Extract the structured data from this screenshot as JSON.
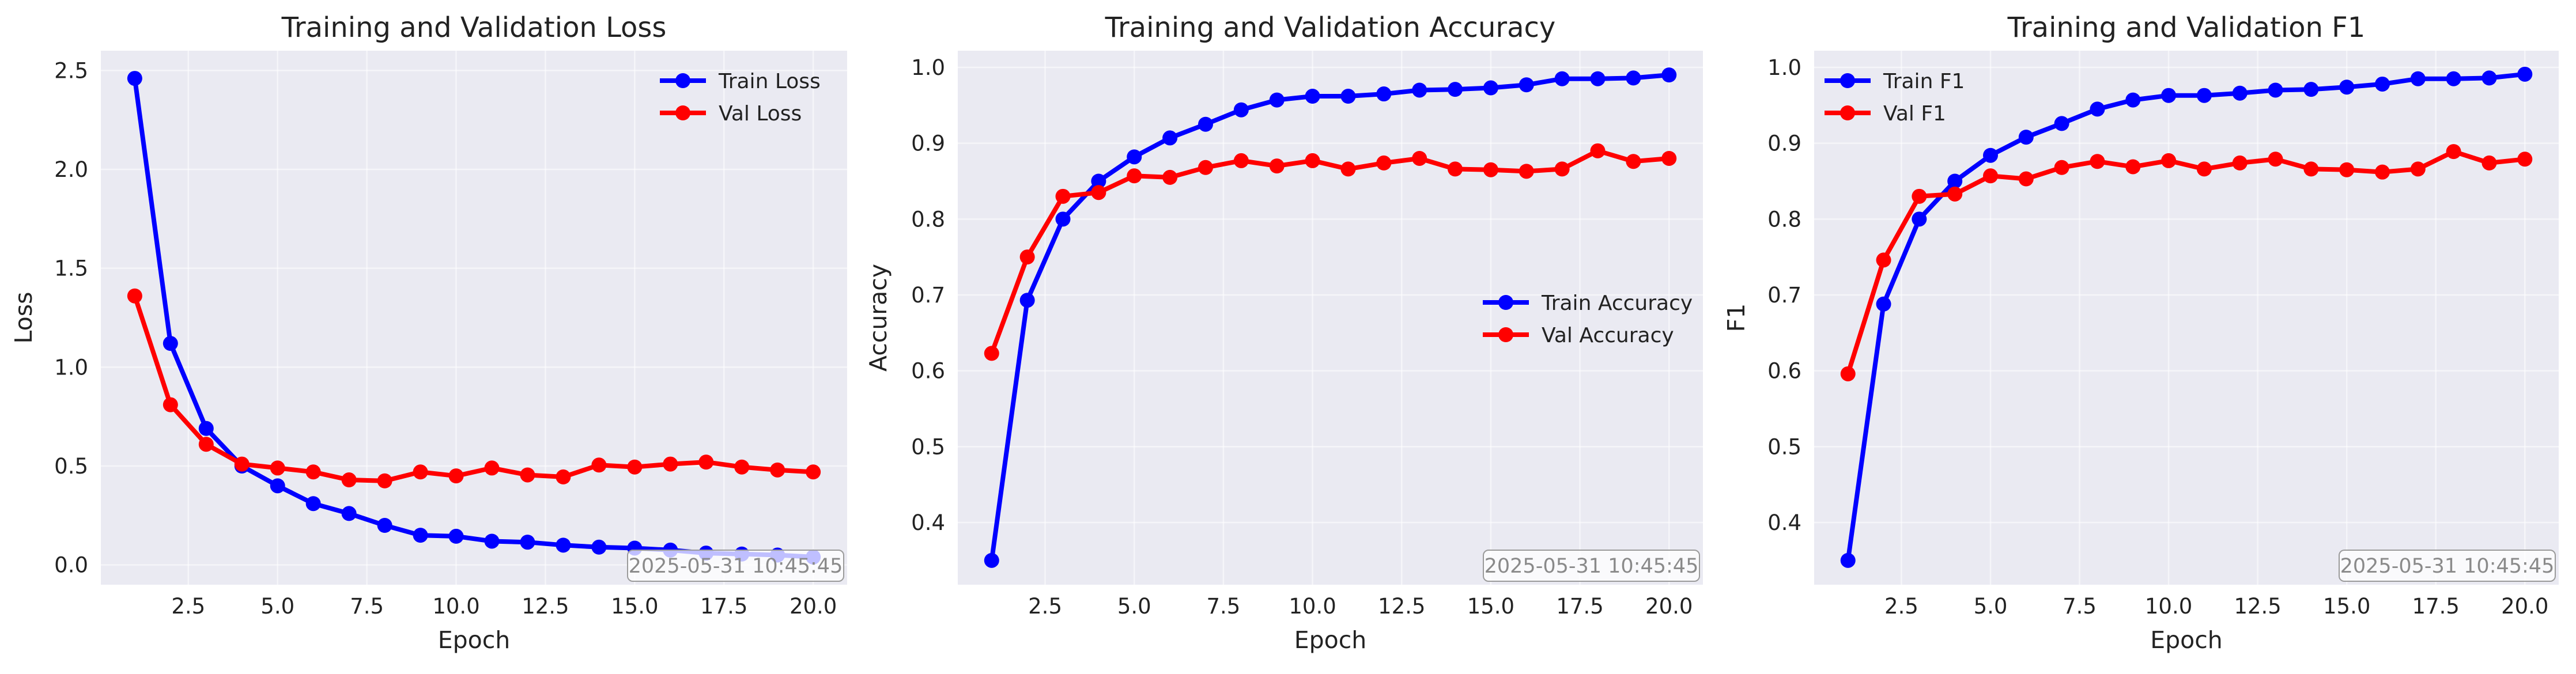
{
  "chart_data": [
    {
      "type": "line",
      "title": "Training and Validation Loss",
      "xlabel": "Epoch",
      "ylabel": "Loss",
      "x": [
        1,
        2,
        3,
        4,
        5,
        6,
        7,
        8,
        9,
        10,
        11,
        12,
        13,
        14,
        15,
        16,
        17,
        18,
        19,
        20
      ],
      "xlim": [
        0.05,
        20.95
      ],
      "ylim": [
        -0.1,
        2.6
      ],
      "xticks": [
        2.5,
        5.0,
        7.5,
        10.0,
        12.5,
        15.0,
        17.5,
        20.0
      ],
      "xtick_labels": [
        "2.5",
        "5.0",
        "7.5",
        "10.0",
        "12.5",
        "15.0",
        "17.5",
        "20.0"
      ],
      "yticks": [
        0.0,
        0.5,
        1.0,
        1.5,
        2.0,
        2.5
      ],
      "ytick_labels": [
        "0.0",
        "0.5",
        "1.0",
        "1.5",
        "2.0",
        "2.5"
      ],
      "series": [
        {
          "name": "Train Loss",
          "color": "#0000ff",
          "values": [
            2.46,
            1.12,
            0.69,
            0.5,
            0.4,
            0.31,
            0.26,
            0.2,
            0.15,
            0.145,
            0.12,
            0.115,
            0.1,
            0.09,
            0.085,
            0.075,
            0.06,
            0.055,
            0.05,
            0.04
          ]
        },
        {
          "name": "Val Loss",
          "color": "#ff0000",
          "values": [
            1.36,
            0.81,
            0.61,
            0.51,
            0.49,
            0.47,
            0.43,
            0.425,
            0.47,
            0.45,
            0.49,
            0.455,
            0.445,
            0.505,
            0.495,
            0.51,
            0.52,
            0.495,
            0.48,
            0.47
          ]
        }
      ],
      "legend": "top-right",
      "grid": true,
      "timestamp": "2025-05-31 10:45:45"
    },
    {
      "type": "line",
      "title": "Training and Validation Accuracy",
      "xlabel": "Epoch",
      "ylabel": "Accuracy",
      "x": [
        1,
        2,
        3,
        4,
        5,
        6,
        7,
        8,
        9,
        10,
        11,
        12,
        13,
        14,
        15,
        16,
        17,
        18,
        19,
        20
      ],
      "xlim": [
        0.05,
        20.95
      ],
      "ylim": [
        0.318,
        1.022
      ],
      "xticks": [
        2.5,
        5.0,
        7.5,
        10.0,
        12.5,
        15.0,
        17.5,
        20.0
      ],
      "xtick_labels": [
        "2.5",
        "5.0",
        "7.5",
        "10.0",
        "12.5",
        "15.0",
        "17.5",
        "20.0"
      ],
      "yticks": [
        0.4,
        0.5,
        0.6,
        0.7,
        0.8,
        0.9,
        1.0
      ],
      "ytick_labels": [
        "0.4",
        "0.5",
        "0.6",
        "0.7",
        "0.8",
        "0.9",
        "1.0"
      ],
      "series": [
        {
          "name": "Train Accuracy",
          "color": "#0000ff",
          "values": [
            0.35,
            0.693,
            0.8,
            0.85,
            0.882,
            0.907,
            0.925,
            0.944,
            0.957,
            0.962,
            0.962,
            0.965,
            0.97,
            0.971,
            0.973,
            0.977,
            0.985,
            0.985,
            0.986,
            0.99
          ]
        },
        {
          "name": "Val Accuracy",
          "color": "#ff0000",
          "values": [
            0.623,
            0.75,
            0.83,
            0.835,
            0.857,
            0.855,
            0.868,
            0.877,
            0.87,
            0.877,
            0.866,
            0.874,
            0.88,
            0.866,
            0.865,
            0.863,
            0.866,
            0.89,
            0.876,
            0.88
          ]
        }
      ],
      "legend": "center-right",
      "grid": true,
      "timestamp": "2025-05-31 10:45:45"
    },
    {
      "type": "line",
      "title": "Training and Validation F1",
      "xlabel": "Epoch",
      "ylabel": "F1",
      "x": [
        1,
        2,
        3,
        4,
        5,
        6,
        7,
        8,
        9,
        10,
        11,
        12,
        13,
        14,
        15,
        16,
        17,
        18,
        19,
        20
      ],
      "xlim": [
        0.05,
        20.95
      ],
      "ylim": [
        0.318,
        1.022
      ],
      "xticks": [
        2.5,
        5.0,
        7.5,
        10.0,
        12.5,
        15.0,
        17.5,
        20.0
      ],
      "xtick_labels": [
        "2.5",
        "5.0",
        "7.5",
        "10.0",
        "12.5",
        "15.0",
        "17.5",
        "20.0"
      ],
      "yticks": [
        0.4,
        0.5,
        0.6,
        0.7,
        0.8,
        0.9,
        1.0
      ],
      "ytick_labels": [
        "0.4",
        "0.5",
        "0.6",
        "0.7",
        "0.8",
        "0.9",
        "1.0"
      ],
      "series": [
        {
          "name": "Train F1",
          "color": "#0000ff",
          "values": [
            0.35,
            0.688,
            0.8,
            0.85,
            0.884,
            0.908,
            0.926,
            0.945,
            0.957,
            0.963,
            0.963,
            0.966,
            0.97,
            0.971,
            0.974,
            0.978,
            0.985,
            0.985,
            0.986,
            0.991
          ]
        },
        {
          "name": "Val F1",
          "color": "#ff0000",
          "values": [
            0.596,
            0.746,
            0.83,
            0.833,
            0.857,
            0.853,
            0.868,
            0.876,
            0.869,
            0.877,
            0.866,
            0.874,
            0.879,
            0.866,
            0.865,
            0.862,
            0.866,
            0.889,
            0.874,
            0.879
          ]
        }
      ],
      "legend": "top-left",
      "grid": true,
      "timestamp": "2025-05-31 10:45:45"
    }
  ],
  "style": {
    "plot_background": "#eaeaf2",
    "grid_color": "#ffffff",
    "text_color": "#222222",
    "timestamp_color": "#8a8a8a"
  }
}
